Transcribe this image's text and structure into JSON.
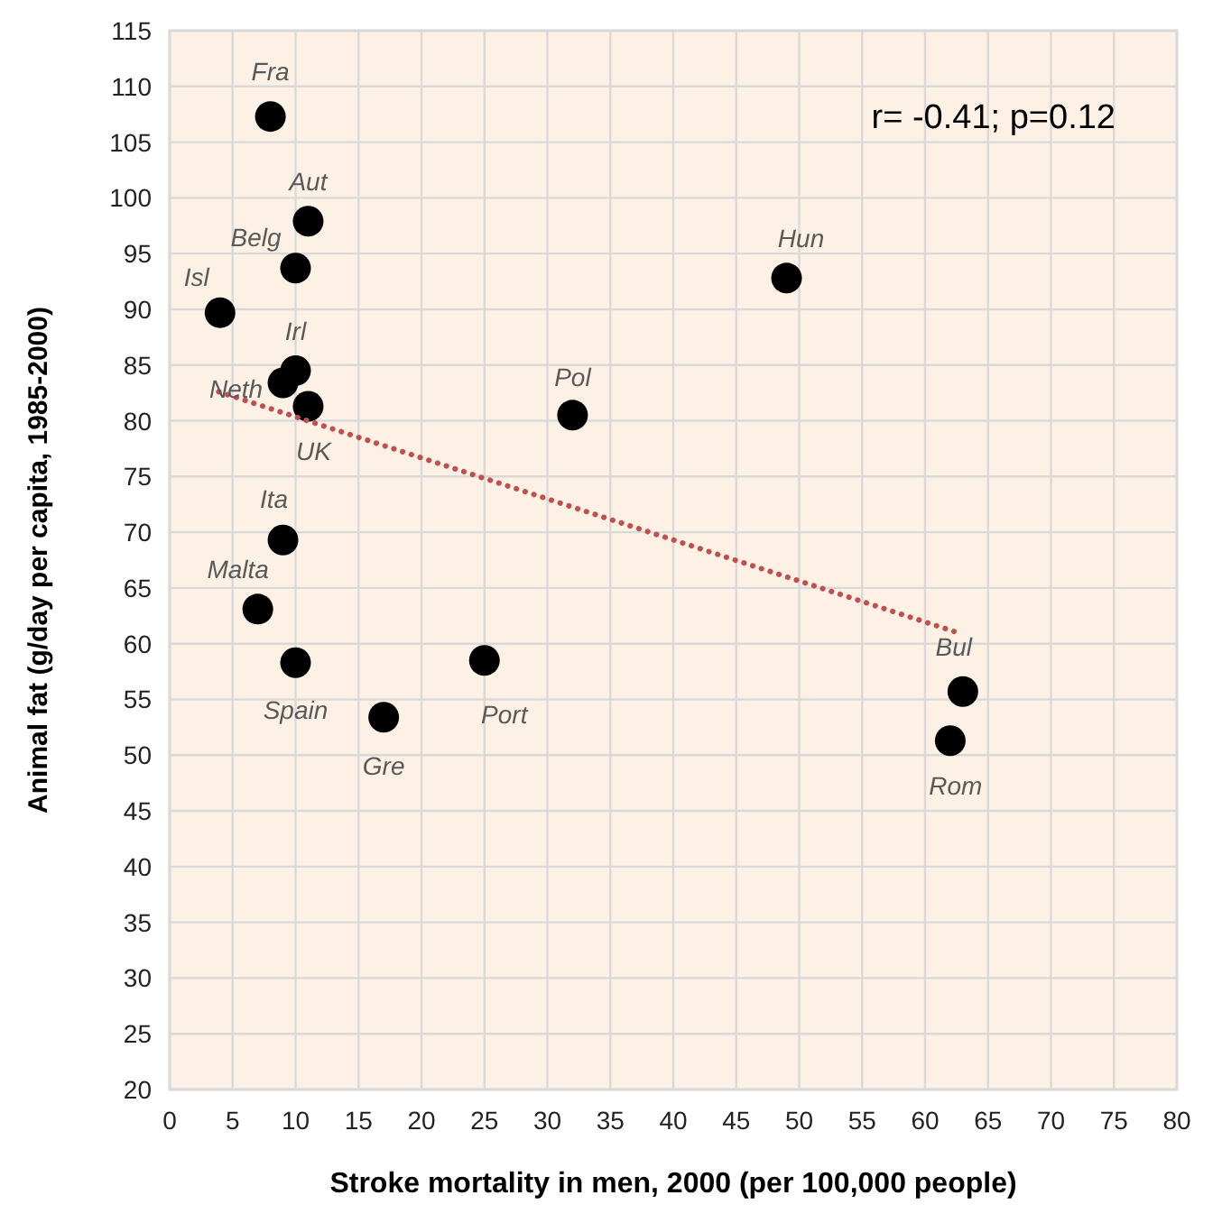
{
  "chart_data": {
    "type": "scatter",
    "xlabel": "Stroke mortality in men, 2000 (per 100,000 people)",
    "ylabel": "Animal fat (g/day per capita, 1985-2000)",
    "xlim": [
      0,
      80
    ],
    "ylim": [
      20,
      115
    ],
    "xticks": [
      0,
      5,
      10,
      15,
      20,
      25,
      30,
      35,
      40,
      45,
      50,
      55,
      60,
      65,
      70,
      75,
      80
    ],
    "yticks": [
      20,
      25,
      30,
      35,
      40,
      45,
      50,
      55,
      60,
      65,
      70,
      75,
      80,
      85,
      90,
      95,
      100,
      105,
      110,
      115
    ],
    "grid": true,
    "marker": "circle",
    "series": [
      {
        "color": "#000000",
        "x": [
          8,
          11,
          10,
          4,
          10,
          9,
          11,
          9,
          7,
          10,
          17,
          25,
          32,
          49,
          63,
          62
        ],
        "values": [
          107.3,
          97.9,
          93.7,
          89.7,
          84.5,
          83.4,
          81.3,
          69.3,
          63.1,
          58.3,
          53.4,
          58.5,
          80.5,
          92.8,
          55.7,
          51.3
        ]
      },
      {
        "type": "line",
        "color": "#c0504d",
        "line_style": "dotted",
        "marker": "none",
        "x": [
          3.9,
          62.3
        ],
        "values": [
          82.6,
          61.1
        ]
      }
    ],
    "annotations": [
      "r= -0.41; p=0.12",
      {
        "text": "Fra",
        "x": 8,
        "y": 107.3
      },
      {
        "text": "Aut",
        "x": 11,
        "y": 97.9
      },
      {
        "text": "Belg",
        "x": 10,
        "y": 93.7
      },
      {
        "text": "Isl",
        "x": 4,
        "y": 89.7
      },
      {
        "text": "Irl",
        "x": 10,
        "y": 84.5
      },
      {
        "text": "Neth",
        "x": 9,
        "y": 83.4
      },
      {
        "text": "UK",
        "x": 11,
        "y": 81.3
      },
      {
        "text": "Ita",
        "x": 9,
        "y": 69.3
      },
      {
        "text": "Malta",
        "x": 7,
        "y": 63.1
      },
      {
        "text": "Spain",
        "x": 10,
        "y": 58.3
      },
      {
        "text": "Gre",
        "x": 17,
        "y": 53.4
      },
      {
        "text": "Port",
        "x": 25,
        "y": 58.5
      },
      {
        "text": "Pol",
        "x": 32,
        "y": 80.5
      },
      {
        "text": "Hun",
        "x": 49,
        "y": 92.8
      },
      {
        "text": "Bul",
        "x": 63,
        "y": 55.7
      },
      {
        "text": "Rom",
        "x": 62,
        "y": 51.3
      }
    ]
  }
}
